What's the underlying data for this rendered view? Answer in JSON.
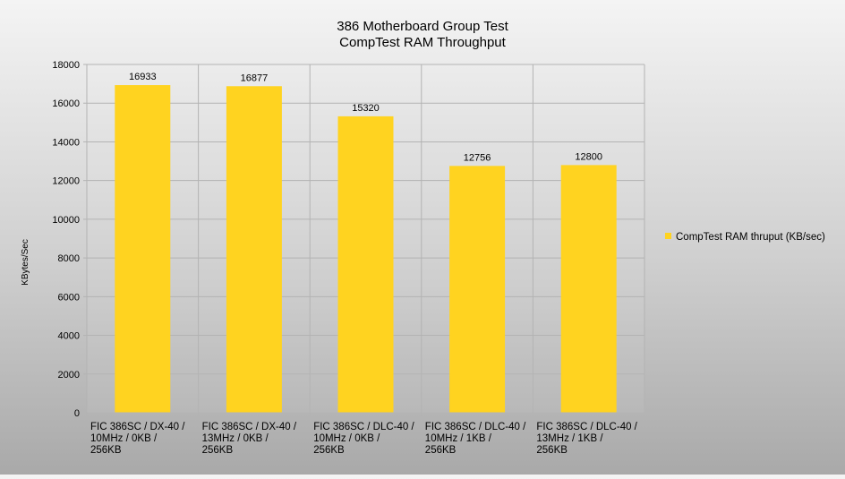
{
  "chart_data": {
    "type": "bar",
    "title_lines": [
      "386 Motherboard Group Test",
      "CompTest RAM Throughput"
    ],
    "ylabel": "KBytes/Sec",
    "xlabel": "",
    "ylim": [
      0,
      18000
    ],
    "yticks": [
      0,
      2000,
      4000,
      6000,
      8000,
      10000,
      12000,
      14000,
      16000,
      18000
    ],
    "grid": true,
    "legend_position": "right",
    "categories": [
      [
        "FIC 386SC / DX-40 /",
        "10MHz / 0KB /",
        "256KB"
      ],
      [
        "FIC 386SC / DX-40 /",
        "13MHz / 0KB /",
        "256KB"
      ],
      [
        "FIC 386SC / DLC-40 /",
        "10MHz / 0KB /",
        "256KB"
      ],
      [
        "FIC 386SC / DLC-40 /",
        "10MHz / 1KB /",
        "256KB"
      ],
      [
        "FIC 386SC / DLC-40 /",
        "13MHz / 1KB /",
        "256KB"
      ]
    ],
    "series": [
      {
        "name": "CompTest RAM thruput (KB/sec)",
        "color": "#ffd320",
        "values": [
          16933,
          16877,
          15320,
          12756,
          12800
        ]
      }
    ]
  }
}
